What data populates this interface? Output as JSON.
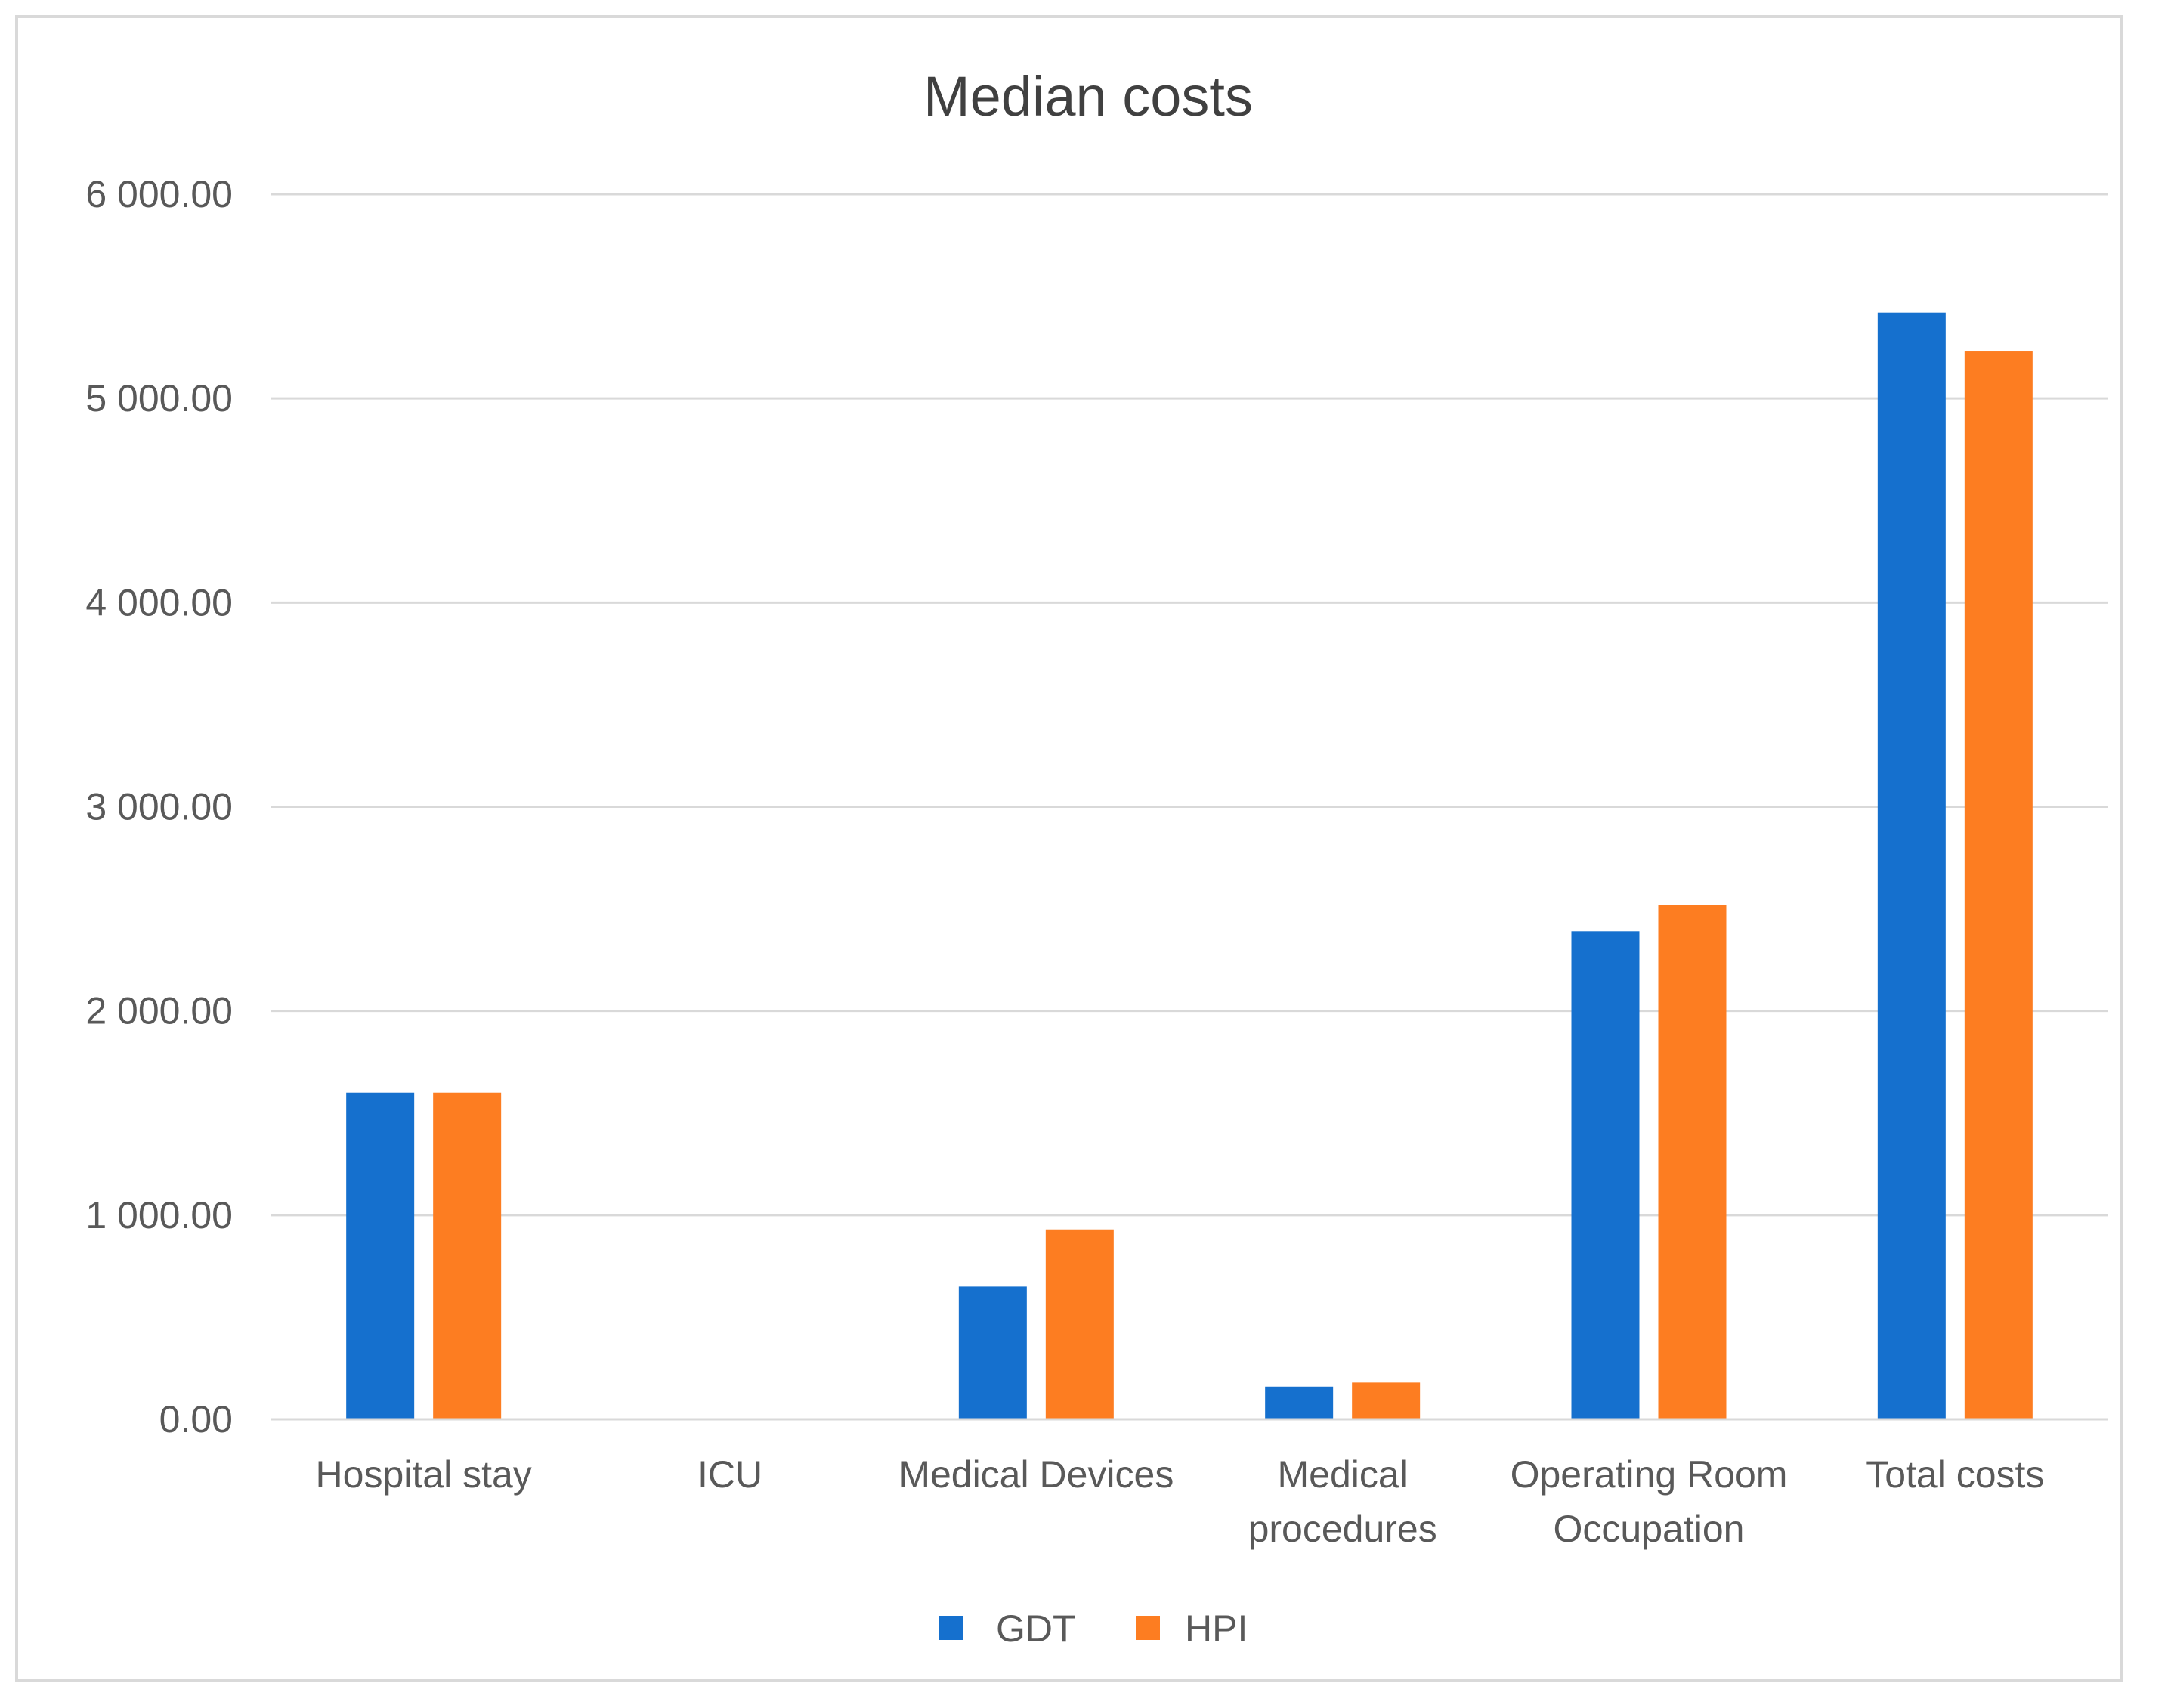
{
  "chart_data": {
    "type": "bar",
    "title": "Median costs",
    "xlabel": "",
    "ylabel": "",
    "ylim": [
      0,
      6000
    ],
    "yticks": [
      {
        "value": 0,
        "label": "0.00"
      },
      {
        "value": 1000,
        "label": "1 000.00"
      },
      {
        "value": 2000,
        "label": "2 000.00"
      },
      {
        "value": 3000,
        "label": "3 000.00"
      },
      {
        "value": 4000,
        "label": "4 000.00"
      },
      {
        "value": 5000,
        "label": "5 000.00"
      },
      {
        "value": 6000,
        "label": "6 000.00"
      }
    ],
    "grid": true,
    "legend_position": "bottom",
    "categories": [
      [
        "Hospital stay"
      ],
      [
        "ICU"
      ],
      [
        "Medical Devices"
      ],
      [
        "Medical",
        "procedures"
      ],
      [
        "Operating Room",
        "Occupation"
      ],
      [
        "Total costs"
      ]
    ],
    "series": [
      {
        "name": "GDT",
        "color": "#1570ce",
        "values": [
          1600,
          0,
          650,
          160,
          2390,
          5420
        ]
      },
      {
        "name": "HPI",
        "color": "#fd7d21",
        "values": [
          1600,
          0,
          930,
          180,
          2520,
          5230
        ]
      }
    ]
  }
}
